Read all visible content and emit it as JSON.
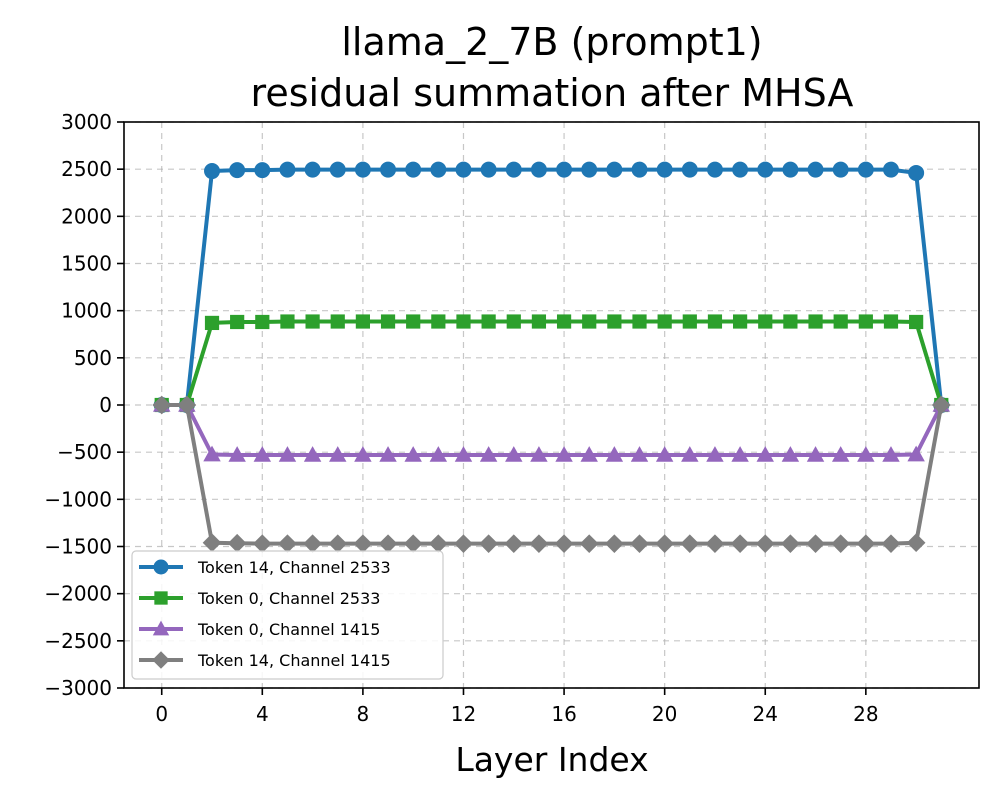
{
  "chart_data": {
    "type": "line",
    "title_line1": "llama_2_7B (prompt1)",
    "title_line2": "residual summation after MHSA",
    "xlabel": "Layer Index",
    "ylabel": "",
    "xlim": [
      -1.5,
      32.5
    ],
    "ylim": [
      -3000,
      3000
    ],
    "xticks": [
      0,
      4,
      8,
      12,
      16,
      20,
      24,
      28
    ],
    "yticks": [
      3000,
      2500,
      2000,
      1500,
      1000,
      500,
      0,
      -500,
      -1000,
      -1500,
      -2000,
      -2500,
      -3000
    ],
    "ytick_labels": [
      "3000",
      "2500",
      "2000",
      "1500",
      "1000",
      "500",
      "0",
      "−500",
      "−1000",
      "−1500",
      "−2000",
      "−2500",
      "−3000"
    ],
    "grid": true,
    "legend_position": "lower-left",
    "x": [
      0,
      1,
      2,
      3,
      4,
      5,
      6,
      7,
      8,
      9,
      10,
      11,
      12,
      13,
      14,
      15,
      16,
      17,
      18,
      19,
      20,
      21,
      22,
      23,
      24,
      25,
      26,
      27,
      28,
      29,
      30,
      31
    ],
    "series": [
      {
        "name": "Token 14, Channel 2533",
        "color": "#1f77b4",
        "marker": "circle",
        "values": [
          0,
          0,
          2480,
          2490,
          2490,
          2495,
          2495,
          2495,
          2495,
          2495,
          2495,
          2495,
          2495,
          2495,
          2495,
          2495,
          2495,
          2495,
          2495,
          2495,
          2495,
          2495,
          2495,
          2495,
          2495,
          2495,
          2495,
          2495,
          2495,
          2495,
          2460,
          0
        ]
      },
      {
        "name": "Token 0, Channel 2533",
        "color": "#2ca02c",
        "marker": "square",
        "values": [
          0,
          0,
          870,
          880,
          880,
          885,
          885,
          885,
          885,
          885,
          885,
          885,
          885,
          885,
          885,
          885,
          885,
          885,
          885,
          885,
          885,
          885,
          885,
          885,
          885,
          885,
          885,
          885,
          885,
          885,
          880,
          0
        ]
      },
      {
        "name": "Token 0, Channel 1415",
        "color": "#9467bd",
        "marker": "triangle",
        "values": [
          0,
          0,
          -525,
          -530,
          -530,
          -530,
          -530,
          -530,
          -530,
          -530,
          -530,
          -530,
          -530,
          -530,
          -530,
          -530,
          -530,
          -530,
          -530,
          -530,
          -530,
          -530,
          -530,
          -530,
          -530,
          -530,
          -530,
          -530,
          -530,
          -530,
          -525,
          0
        ]
      },
      {
        "name": "Token 14, Channel 1415",
        "color": "#7f7f7f",
        "marker": "diamond",
        "values": [
          0,
          0,
          -1460,
          -1465,
          -1470,
          -1470,
          -1470,
          -1470,
          -1470,
          -1470,
          -1470,
          -1470,
          -1470,
          -1470,
          -1470,
          -1470,
          -1470,
          -1470,
          -1470,
          -1470,
          -1470,
          -1470,
          -1470,
          -1470,
          -1470,
          -1470,
          -1470,
          -1470,
          -1470,
          -1470,
          -1460,
          0
        ]
      }
    ]
  }
}
